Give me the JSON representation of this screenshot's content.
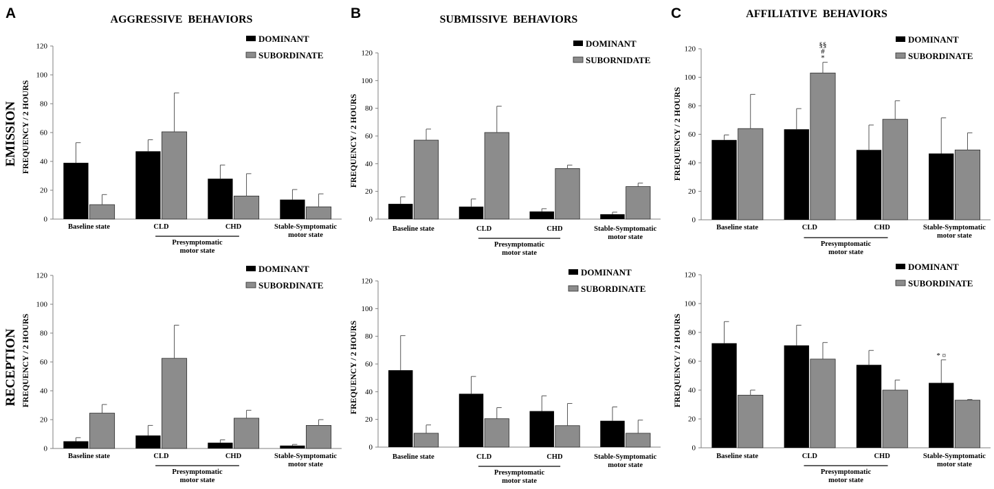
{
  "figure": {
    "panel_letters": [
      "A",
      "B",
      "C"
    ],
    "column_titles": [
      "AGGRESSIVE  BEHAVIORS",
      "SUBMISSIVE  BEHAVIORS",
      "AFFILIATIVE  BEHAVIORS"
    ],
    "row_labels": [
      "EMISSION",
      "RECEPTION"
    ]
  },
  "colors": {
    "dominant": "#000000",
    "subordinate": "#8c8c8c",
    "axis": "#7f7f7f"
  },
  "chart_data": [
    {
      "type": "bar",
      "title": "AGGRESSIVE  BEHAVIORS",
      "row": "EMISSION",
      "ylabel": "FREQUENCY / 2 HOURS",
      "ylim": [
        0,
        120
      ],
      "yticks": [
        "0",
        "20",
        "40",
        "60",
        "80",
        "100",
        "120"
      ],
      "categories": [
        "Baseline state",
        "CLD",
        "CHD",
        "Stable-Symptomatic"
      ],
      "category_sublabels": [
        "",
        "",
        "",
        "motor state"
      ],
      "group_label": [
        "Presymptomatic",
        "motor state"
      ],
      "legend": [
        "DOMINANT",
        "SUBORDINATE"
      ],
      "series": [
        {
          "name": "DOMINANT",
          "values": [
            39,
            47,
            28,
            13.5
          ],
          "errors": [
            14,
            8,
            9.5,
            7
          ]
        },
        {
          "name": "SUBORDINATE",
          "values": [
            10,
            60.5,
            16,
            8.5
          ],
          "errors": [
            7,
            27,
            15.5,
            9
          ]
        }
      ],
      "annotations": []
    },
    {
      "type": "bar",
      "title": "SUBMISSIVE  BEHAVIORS",
      "row": "EMISSION",
      "ylabel": "FREQUENCY / 2 HOURS",
      "ylim": [
        0,
        120
      ],
      "yticks": [
        "0",
        "20",
        "40",
        "60",
        "80",
        "100",
        "120"
      ],
      "categories": [
        "Baseline state",
        "CLD",
        "CHD",
        "Stable-Symptomatic"
      ],
      "category_sublabels": [
        "",
        "",
        "",
        "motor state"
      ],
      "group_label": [
        "Presymptomatic",
        "motor state"
      ],
      "legend": [
        "DOMINANT",
        "SUBORNIDATE"
      ],
      "series": [
        {
          "name": "DOMINANT",
          "values": [
            11,
            9,
            5.5,
            3.5
          ],
          "errors": [
            5,
            5.5,
            2,
            1.5
          ]
        },
        {
          "name": "SUBORNIDATE",
          "values": [
            57,
            62.5,
            36.5,
            23.5
          ],
          "errors": [
            8,
            19,
            2.5,
            2.5
          ]
        }
      ],
      "annotations": []
    },
    {
      "type": "bar",
      "title": "AFFILIATIVE  BEHAVIORS",
      "row": "EMISSION",
      "ylabel": "FREQUENCY / 2 HOURS",
      "ylim": [
        0,
        120
      ],
      "yticks": [
        "0",
        "20",
        "40",
        "60",
        "80",
        "100",
        "120"
      ],
      "categories": [
        "Baseline state",
        "CLD",
        "CHD",
        "Stable-Symptomatic"
      ],
      "category_sublabels": [
        "",
        "",
        "",
        "motor state"
      ],
      "group_label": [
        "Presymptomatic",
        "motor state"
      ],
      "legend": [
        "DOMINANT",
        "SUBORDINATE"
      ],
      "series": [
        {
          "name": "DOMINANT",
          "values": [
            56,
            63.5,
            49,
            46.5
          ],
          "errors": [
            3.5,
            14.5,
            17.5,
            25
          ]
        },
        {
          "name": "SUBORDINATE",
          "values": [
            64,
            103,
            70.5,
            49
          ],
          "errors": [
            24,
            7.5,
            13,
            12
          ]
        }
      ],
      "annotations": [
        {
          "series": 1,
          "category": 1,
          "lines": [
            "§§",
            "#",
            "*"
          ]
        }
      ]
    },
    {
      "type": "bar",
      "title": "AGGRESSIVE  BEHAVIORS",
      "row": "RECEPTION",
      "ylabel": "FREQUENCY / 2 HOURS",
      "ylim": [
        0,
        120
      ],
      "yticks": [
        "0",
        "20",
        "40",
        "60",
        "80",
        "100",
        "120"
      ],
      "categories": [
        "Baseline state",
        "CLD",
        "CHD",
        "Stable-Symptomatic"
      ],
      "category_sublabels": [
        "",
        "",
        "",
        "motor state"
      ],
      "group_label": [
        "Presymptomatic",
        "motor state"
      ],
      "legend": [
        "DOMINANT",
        "SUBORDINATE"
      ],
      "series": [
        {
          "name": "DOMINANT",
          "values": [
            5,
            9,
            4,
            2
          ],
          "errors": [
            2.5,
            7,
            2,
            0.8
          ]
        },
        {
          "name": "SUBORDINATE",
          "values": [
            24.5,
            62.5,
            21,
            16
          ],
          "errors": [
            6,
            23,
            5.5,
            4
          ]
        }
      ],
      "annotations": []
    },
    {
      "type": "bar",
      "title": "SUBMISSIVE  BEHAVIORS",
      "row": "RECEPTION",
      "ylabel": "FREQUENCY / 2 HOURS",
      "ylim": [
        0,
        120
      ],
      "yticks": [
        "0",
        "20",
        "40",
        "60",
        "80",
        "100",
        "120"
      ],
      "categories": [
        "Baseline state",
        "CLD",
        "CHD",
        "Stable-Symptomatic"
      ],
      "category_sublabels": [
        "",
        "",
        "",
        "motor state"
      ],
      "group_label": [
        "Presymptomatic",
        "motor state"
      ],
      "legend": [
        "DOMINANT",
        "SUBORDINATE"
      ],
      "series": [
        {
          "name": "DOMINANT",
          "values": [
            55.5,
            38.5,
            26,
            19
          ],
          "errors": [
            25,
            12.5,
            11,
            10
          ]
        },
        {
          "name": "SUBORDINATE",
          "values": [
            10,
            20.5,
            15.5,
            10
          ],
          "errors": [
            6,
            8,
            16,
            9.5
          ]
        }
      ],
      "annotations": []
    },
    {
      "type": "bar",
      "title": "AFFILIATIVE  BEHAVIORS",
      "row": "RECEPTION",
      "ylabel": "FREQUENCY / 2 HOURS",
      "ylim": [
        0,
        120
      ],
      "yticks": [
        "0",
        "20",
        "40",
        "60",
        "80",
        "100",
        "120"
      ],
      "categories": [
        "Baseline state",
        "CLD",
        "CHD",
        "Stable-Symptomatic"
      ],
      "category_sublabels": [
        "",
        "",
        "",
        "motor state"
      ],
      "group_label": [
        "Presymptomatic",
        "motor state"
      ],
      "legend": [
        "DOMINANT",
        "SUBORDINATE"
      ],
      "series": [
        {
          "name": "DOMINANT",
          "values": [
            72.5,
            71,
            57.5,
            45
          ],
          "errors": [
            15,
            14,
            10,
            16
          ]
        },
        {
          "name": "SUBORDINATE",
          "values": [
            36.5,
            61.5,
            40,
            33
          ],
          "errors": [
            3.5,
            11.5,
            7,
            0.5
          ]
        }
      ],
      "annotations": [
        {
          "series": 0,
          "category": 3,
          "lines": [
            "* ¤"
          ]
        }
      ]
    }
  ]
}
